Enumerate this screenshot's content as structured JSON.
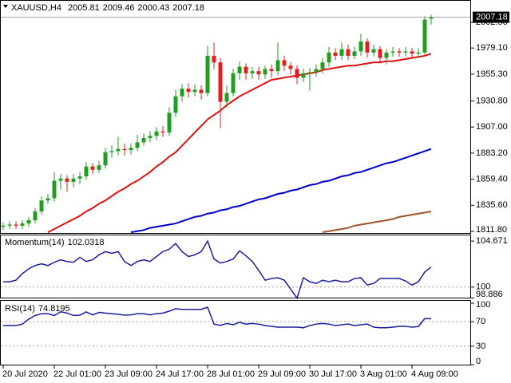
{
  "chart_data": [
    {
      "type": "candlestick",
      "title": "XAUUSD,H4",
      "categories": [
        "20 Jul 2020",
        null,
        null,
        null,
        null,
        null,
        null,
        null,
        "22 Jul 01:00",
        null,
        null,
        null,
        null,
        null,
        null,
        null,
        "23 Jul 09:00",
        null,
        null,
        null,
        null,
        null,
        null,
        null,
        "24 Jul 17:00",
        null,
        null,
        null,
        null,
        null,
        null,
        null,
        "28 Jul 01:00",
        null,
        null,
        null,
        null,
        null,
        null,
        null,
        "29 Jul 09:00",
        null,
        null,
        null,
        null,
        null,
        null,
        null,
        "30 Jul 17:00",
        null,
        null,
        null,
        null,
        null,
        null,
        null,
        "3 Aug 01:00",
        null,
        null,
        null,
        null,
        null,
        null,
        null,
        "4 Aug 09:00",
        null,
        null,
        null
      ],
      "open": [
        1816,
        1817,
        1818,
        1817,
        1819,
        1822,
        1830,
        1840,
        1842,
        1858,
        1860,
        1857,
        1860,
        1862,
        1871,
        1868,
        1872,
        1884,
        1885,
        1887,
        1886,
        1888,
        1893,
        1897,
        1899,
        1903,
        1902,
        1920,
        1935,
        1942,
        1939,
        1941,
        1938,
        1972,
        1966,
        1930,
        1938,
        1956,
        1962,
        1956,
        1958,
        1955,
        1960,
        1958,
        1968,
        1963,
        1960,
        1952,
        1956,
        1957,
        1960,
        1966,
        1975,
        1972,
        1978,
        1972,
        1976,
        1985,
        1975,
        1978,
        1970,
        1975,
        1976,
        1975,
        1976,
        1974,
        1975,
        2005.81
      ],
      "high": [
        1820,
        1821,
        1821,
        1822,
        1825,
        1833,
        1844,
        1846,
        1866,
        1864,
        1863,
        1864,
        1866,
        1875,
        1874,
        1876,
        1888,
        1890,
        1898,
        1892,
        1892,
        1900,
        1901,
        1903,
        1907,
        1908,
        1925,
        1941,
        1946,
        1947,
        1946,
        1945,
        1981,
        1984,
        1970,
        1945,
        1960,
        1967,
        1965,
        1962,
        1962,
        1963,
        1964,
        1984,
        1972,
        1966,
        1963,
        1960,
        1961,
        1964,
        1970,
        1980,
        1979,
        1984,
        1982,
        1980,
        1992,
        1988,
        1982,
        1981,
        1978,
        1980,
        1979,
        1980,
        1979,
        1979,
        2008,
        2009.46
      ],
      "low": [
        1813,
        1814,
        1814,
        1814,
        1816,
        1819,
        1827,
        1837,
        1839,
        1850,
        1848,
        1852,
        1855,
        1859,
        1864,
        1865,
        1869,
        1879,
        1881,
        1881,
        1882,
        1885,
        1890,
        1893,
        1895,
        1898,
        1899,
        1916,
        1930,
        1934,
        1935,
        1932,
        1935,
        1960,
        1906,
        1925,
        1935,
        1950,
        1950,
        1951,
        1950,
        1951,
        1952,
        1954,
        1958,
        1955,
        1946,
        1948,
        1940,
        1953,
        1956,
        1962,
        1968,
        1968,
        1968,
        1969,
        1972,
        1970,
        1971,
        1965,
        1964,
        1971,
        1971,
        1971,
        1970,
        1970,
        1973,
        2000.43
      ],
      "close": [
        1817,
        1818,
        1817,
        1819,
        1822,
        1830,
        1840,
        1842,
        1858,
        1860,
        1857,
        1860,
        1862,
        1871,
        1868,
        1872,
        1884,
        1885,
        1887,
        1886,
        1888,
        1893,
        1897,
        1899,
        1903,
        1902,
        1920,
        1935,
        1942,
        1939,
        1941,
        1938,
        1972,
        1966,
        1930,
        1938,
        1956,
        1962,
        1956,
        1958,
        1955,
        1960,
        1958,
        1968,
        1963,
        1960,
        1952,
        1956,
        1957,
        1960,
        1966,
        1975,
        1972,
        1978,
        1972,
        1976,
        1985,
        1975,
        1978,
        1970,
        1975,
        1976,
        1975,
        1976,
        1974,
        1975,
        2005,
        2007.18
      ],
      "up_color": "#1f9e1f",
      "down_color": "#e02020",
      "series": [
        {
          "color": "#e01010",
          "values": [
            null,
            null,
            null,
            null,
            null,
            null,
            null,
            1811,
            1814,
            1817,
            1820,
            1823,
            1826,
            1830,
            1833,
            1837,
            1840,
            1844,
            1848,
            1851,
            1855,
            1858,
            1862,
            1866,
            1871,
            1875,
            1880,
            1884,
            1890,
            1896,
            1902,
            1908,
            1914,
            1918,
            1922,
            1927,
            1931,
            1935,
            1938,
            1941,
            1944,
            1947,
            1950,
            1951,
            1952,
            1953,
            1954,
            1955,
            1956,
            1957,
            1959,
            1960,
            1961,
            1962,
            1963,
            1963,
            1964,
            1965,
            1966,
            1966,
            1967,
            1967,
            1968,
            1969,
            1970,
            1971,
            1972,
            1974
          ]
        },
        {
          "color": "#0000c8",
          "values": [
            null,
            null,
            null,
            null,
            null,
            null,
            null,
            null,
            null,
            null,
            null,
            null,
            null,
            null,
            null,
            null,
            null,
            null,
            null,
            null,
            1811,
            1812,
            1813,
            1815,
            1816,
            1817,
            1818,
            1819,
            1821,
            1823,
            1825,
            1826,
            1828,
            1829,
            1831,
            1832,
            1834,
            1835,
            1837,
            1839,
            1841,
            1842,
            1844,
            1846,
            1847,
            1849,
            1850,
            1852,
            1854,
            1855,
            1857,
            1858,
            1860,
            1862,
            1863,
            1865,
            1866,
            1868,
            1870,
            1872,
            1874,
            1875,
            1877,
            1879,
            1881,
            1883,
            1885,
            1887
          ]
        },
        {
          "color": "#a0522d",
          "values": [
            null,
            null,
            null,
            null,
            null,
            null,
            null,
            null,
            null,
            null,
            null,
            null,
            null,
            null,
            null,
            null,
            null,
            null,
            null,
            null,
            null,
            null,
            null,
            null,
            null,
            null,
            null,
            null,
            null,
            null,
            null,
            null,
            null,
            null,
            null,
            null,
            null,
            null,
            null,
            null,
            null,
            null,
            null,
            null,
            null,
            null,
            null,
            null,
            null,
            null,
            1811,
            1812,
            1813,
            1814,
            1815,
            1817,
            1818,
            1819,
            1820,
            1821,
            1822,
            1823,
            1825,
            1826,
            1827,
            1828,
            1829,
            1830
          ]
        }
      ],
      "ylim": [
        1809.6,
        2022.9
      ],
      "yticks": [
        {
          "value": 2002.5,
          "label": "2002.50"
        },
        {
          "value": 1979.1,
          "label": "1979.10"
        },
        {
          "value": 1955.3,
          "label": "1955.30"
        },
        {
          "value": 1930.8,
          "label": "1930.80"
        },
        {
          "value": 1907,
          "label": "1907.00"
        },
        {
          "value": 1883.2,
          "label": "1883.20"
        },
        {
          "value": 1859.4,
          "label": "1859.40"
        },
        {
          "value": 1835.6,
          "label": "1835.60"
        },
        {
          "value": 1811.8,
          "label": "1811.80"
        }
      ]
    },
    {
      "type": "line",
      "title": "Momentum(14)",
      "color": "#1c1ca0",
      "values": [
        100.54,
        100.54,
        100.7,
        101.37,
        101.86,
        102.19,
        102.36,
        102.19,
        102.52,
        102.77,
        102.6,
        102.52,
        103.02,
        102.6,
        102.77,
        103.27,
        103.6,
        103.43,
        103.6,
        102.6,
        102.19,
        102.6,
        102.77,
        102.6,
        103.1,
        103.6,
        103.85,
        104.42,
        103.6,
        103.1,
        103.27,
        103.6,
        104.671,
        102.85,
        102.44,
        102.6,
        102.85,
        103.68,
        103.18,
        102.6,
        101.7,
        100.7,
        100.87,
        100.95,
        100.7,
        99.8,
        98.886,
        100.95,
        100.54,
        100.37,
        100.7,
        100.54,
        100.7,
        100.54,
        100.54,
        100.87,
        100.95,
        100.21,
        100.37,
        100.87,
        100.87,
        100.87,
        100.87,
        100.62,
        100.21,
        100.54,
        101.53,
        102.0318
      ],
      "ylim": [
        98.85,
        105.33
      ],
      "yticks": [
        104.671,
        100,
        98.886
      ],
      "levels": [
        100
      ]
    },
    {
      "type": "line",
      "title": "RSI(14)",
      "color": "#1c1ca0",
      "values": [
        63.6,
        63.6,
        63.6,
        66,
        74,
        80,
        83,
        83,
        80,
        86,
        84,
        80,
        80.5,
        86,
        81,
        85,
        84,
        83,
        82,
        80.5,
        81,
        83,
        83,
        81,
        83,
        84,
        87,
        91,
        90,
        90,
        90,
        90,
        93.5,
        66,
        64,
        67,
        65,
        69,
        66,
        67,
        66,
        63.6,
        62.3,
        61,
        61,
        61,
        61,
        60,
        63.6,
        66,
        67,
        66,
        63.6,
        65,
        66,
        63.6,
        65,
        66,
        61,
        60,
        60,
        61,
        62.3,
        62.3,
        61,
        62,
        75,
        74.8195
      ],
      "ylim": [
        -1.3,
        105.2
      ],
      "yticks": [
        100,
        70,
        30,
        0
      ],
      "levels": [
        70,
        30
      ]
    }
  ]
}
